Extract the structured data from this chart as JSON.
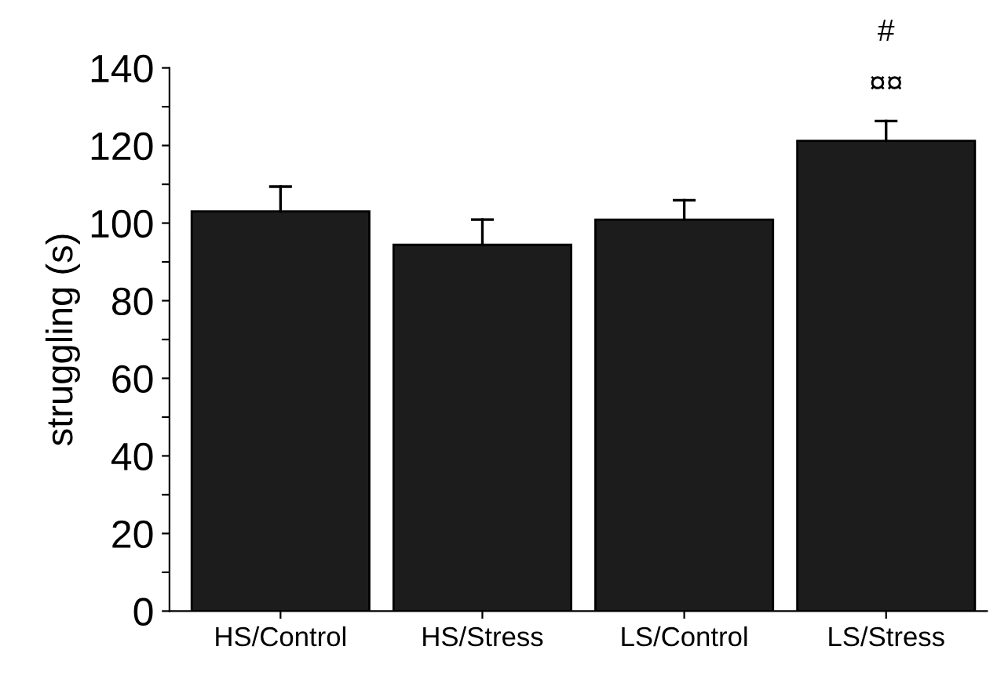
{
  "chart_data": {
    "type": "bar",
    "ylabel": "struggling (s)",
    "categories": [
      "HS/Control",
      "HS/Stress",
      "LS/Control",
      "LS/Stress"
    ],
    "values": [
      103,
      94.4,
      100.9,
      121.2
    ],
    "errors": [
      [
        103,
        109.4
      ],
      [
        94.4,
        100.9
      ],
      [
        100.9,
        105.9
      ],
      [
        121.2,
        126.3
      ]
    ],
    "color": "#1c1c1c",
    "ylim": [
      0,
      140
    ],
    "yticks": [
      0,
      {
        "value": 10,
        "label": null
      },
      20,
      {
        "value": 30,
        "label": null
      },
      40,
      {
        "value": 50,
        "label": null
      },
      60,
      {
        "value": 70,
        "label": null
      },
      80,
      {
        "value": 90,
        "label": null
      },
      100,
      {
        "value": 110,
        "label": null
      },
      120,
      {
        "value": 130,
        "label": null
      },
      140
    ],
    "annotations": [
      "¤¤",
      "#"
    ],
    "grid": false,
    "legend": false
  }
}
